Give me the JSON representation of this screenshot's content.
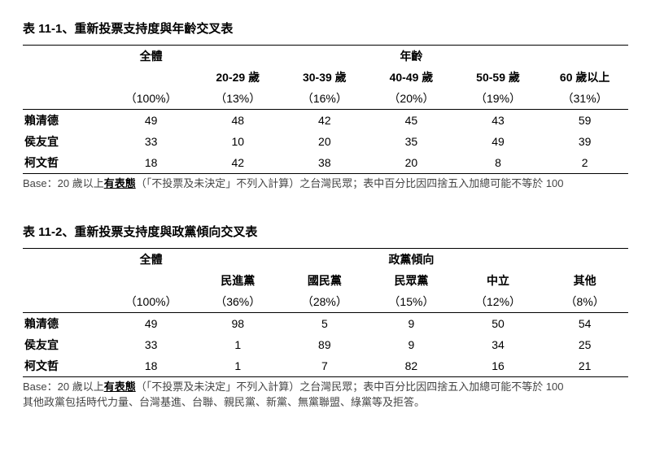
{
  "table1": {
    "title": "表 11-1、重新投票支持度與年齡交叉表",
    "group_overall": "全體",
    "group_main": "年齡",
    "cols": [
      "20-29 歲",
      "30-39 歲",
      "40-49 歲",
      "50-59 歲",
      "60 歲以上"
    ],
    "pcts": [
      "（100%）",
      "（13%）",
      "（16%）",
      "（20%）",
      "（19%）",
      "（31%）"
    ],
    "rows": [
      {
        "label": "賴清德",
        "vals": [
          "49",
          "48",
          "42",
          "45",
          "43",
          "59"
        ]
      },
      {
        "label": "侯友宜",
        "vals": [
          "33",
          "10",
          "20",
          "35",
          "49",
          "39"
        ]
      },
      {
        "label": "柯文哲",
        "vals": [
          "18",
          "42",
          "38",
          "20",
          "8",
          "2"
        ]
      }
    ],
    "footnote_pre": "Base：20 歲以上",
    "footnote_u": "有表態",
    "footnote_post": "（「不投票及未決定」不列入計算）之台灣民眾；表中百分比因四捨五入加總可能不等於 100"
  },
  "table2": {
    "title": "表 11-2、重新投票支持度與政黨傾向交叉表",
    "group_overall": "全體",
    "group_main": "政黨傾向",
    "cols": [
      "民進黨",
      "國民黨",
      "民眾黨",
      "中立",
      "其他"
    ],
    "pcts": [
      "（100%）",
      "（36%）",
      "（28%）",
      "（15%）",
      "（12%）",
      "（8%）"
    ],
    "rows": [
      {
        "label": "賴清德",
        "vals": [
          "49",
          "98",
          "5",
          "9",
          "50",
          "54"
        ]
      },
      {
        "label": "侯友宜",
        "vals": [
          "33",
          "1",
          "89",
          "9",
          "34",
          "25"
        ]
      },
      {
        "label": "柯文哲",
        "vals": [
          "18",
          "1",
          "7",
          "82",
          "16",
          "21"
        ]
      }
    ],
    "footnote_pre": "Base：20 歲以上",
    "footnote_u": "有表態",
    "footnote_post": "（「不投票及未決定」不列入計算）之台灣民眾；表中百分比因四捨五入加總可能不等於 100",
    "footnote2": "其他政黨包括時代力量、台灣基進、台聯、親民黨、新黨、無黨聯盟、綠黨等及拒答。"
  }
}
